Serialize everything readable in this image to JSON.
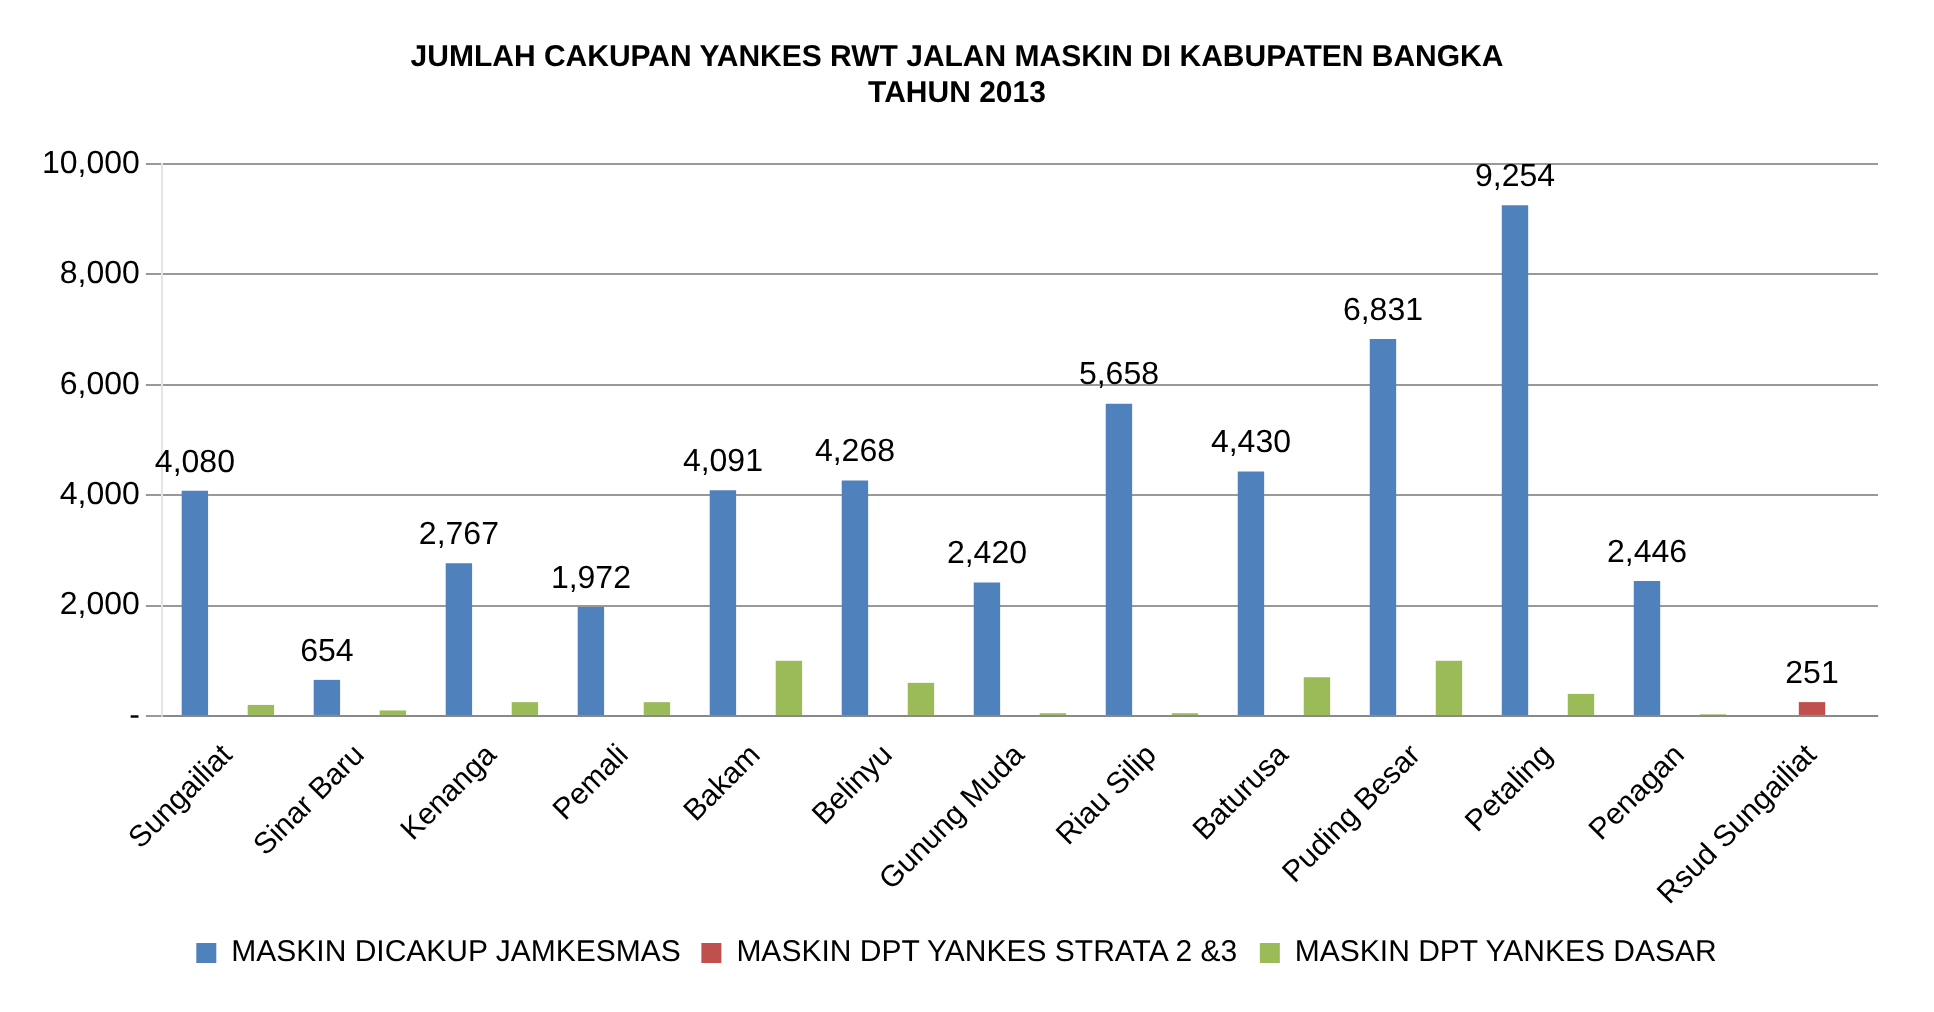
{
  "chart_data": {
    "type": "bar",
    "title": "JUMLAH CAKUPAN YANKES RWT JALAN MASKIN DI KABUPATEN BANGKA\nTAHUN 2013",
    "categories": [
      "Sungailiat",
      "Sinar Baru",
      "Kenanga",
      "Pemali",
      "Bakam",
      "Belinyu",
      "Gunung Muda",
      "Riau Silip",
      "Baturusa",
      "Puding Besar",
      "Petaling",
      "Penagan",
      "Rsud Sungailiat"
    ],
    "series": [
      {
        "name": "MASKIN DICAKUP JAMKESMAS",
        "color": "#4f81bd",
        "values": [
          4080,
          654,
          2767,
          1972,
          4091,
          4268,
          2420,
          5658,
          4430,
          6831,
          9254,
          2446,
          0
        ],
        "value_labels": [
          "4,080",
          "654",
          "2,767",
          "1,972",
          "4,091",
          "4,268",
          "2,420",
          "5,658",
          "4,430",
          "6,831",
          "9,254",
          "2,446",
          null
        ]
      },
      {
        "name": "MASKIN DPT YANKES STRATA 2 &3",
        "color": "#c0504d",
        "values": [
          0,
          0,
          0,
          0,
          0,
          0,
          0,
          0,
          0,
          0,
          0,
          0,
          251
        ],
        "value_labels": [
          null,
          null,
          null,
          null,
          null,
          null,
          null,
          null,
          null,
          null,
          null,
          null,
          "251"
        ]
      },
      {
        "name": "MASKIN DPT YANKES DASAR",
        "color": "#9bbb59",
        "values": [
          200,
          100,
          250,
          250,
          1000,
          600,
          50,
          50,
          700,
          1000,
          400,
          30,
          0
        ]
      }
    ],
    "ylim": [
      0,
      10000
    ],
    "yticks": [
      {
        "value": 0,
        "label": "-"
      },
      {
        "value": 2000,
        "label": "2,000"
      },
      {
        "value": 4000,
        "label": "4,000"
      },
      {
        "value": 6000,
        "label": "6,000"
      },
      {
        "value": 8000,
        "label": "8,000"
      },
      {
        "value": 10000,
        "label": "10,000"
      }
    ],
    "grid": "y",
    "legend": "bottom"
  }
}
